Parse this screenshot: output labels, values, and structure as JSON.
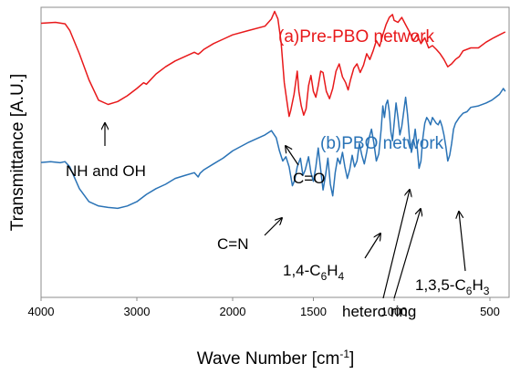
{
  "chart_data": {
    "type": "line",
    "xlabel_main": "Wave Number [cm",
    "xlabel_sup": "-1",
    "xlabel_tail": "]",
    "ylabel": "Transmittance [A.U.]",
    "x_reversed": true,
    "xlim": [
      4000,
      400
    ],
    "ylim": [
      0,
      100
    ],
    "x_ticks": [
      "4000",
      "3000",
      "2000",
      "1500",
      "1000",
      "500"
    ],
    "x_tick_values": [
      4000,
      3000,
      2000,
      1500,
      1000,
      500
    ],
    "grid": false,
    "series": [
      {
        "name": "(a)Pre-PBO network",
        "color": "#e8191b",
        "points": [
          [
            4000,
            94.5
          ],
          [
            3850,
            94.8
          ],
          [
            3750,
            94.3
          ],
          [
            3700,
            92
          ],
          [
            3600,
            84
          ],
          [
            3500,
            75
          ],
          [
            3400,
            68
          ],
          [
            3300,
            66.5
          ],
          [
            3200,
            67.5
          ],
          [
            3100,
            69.5
          ],
          [
            3000,
            72
          ],
          [
            2930,
            74
          ],
          [
            2900,
            73.5
          ],
          [
            2800,
            77
          ],
          [
            2700,
            79.5
          ],
          [
            2600,
            81.5
          ],
          [
            2500,
            83
          ],
          [
            2400,
            84.5
          ],
          [
            2360,
            83.8
          ],
          [
            2340,
            84.3
          ],
          [
            2300,
            85.5
          ],
          [
            2200,
            87.5
          ],
          [
            2100,
            89
          ],
          [
            2000,
            90.5
          ],
          [
            1900,
            92
          ],
          [
            1800,
            93.5
          ],
          [
            1760,
            96
          ],
          [
            1740,
            98.6
          ],
          [
            1720,
            96
          ],
          [
            1700,
            88
          ],
          [
            1680,
            74
          ],
          [
            1660,
            66
          ],
          [
            1650,
            62.4
          ],
          [
            1640,
            64.5
          ],
          [
            1620,
            70
          ],
          [
            1600,
            78
          ],
          [
            1590,
            71
          ],
          [
            1575,
            66
          ],
          [
            1560,
            62.8
          ],
          [
            1545,
            65
          ],
          [
            1530,
            73
          ],
          [
            1515,
            76.5
          ],
          [
            1500,
            71
          ],
          [
            1485,
            69
          ],
          [
            1470,
            73
          ],
          [
            1455,
            78
          ],
          [
            1440,
            77.5
          ],
          [
            1420,
            71
          ],
          [
            1400,
            68.5
          ],
          [
            1380,
            72
          ],
          [
            1360,
            78
          ],
          [
            1340,
            80.5
          ],
          [
            1320,
            76
          ],
          [
            1300,
            74
          ],
          [
            1285,
            71.5
          ],
          [
            1270,
            75
          ],
          [
            1250,
            79
          ],
          [
            1230,
            80.5
          ],
          [
            1210,
            77.5
          ],
          [
            1190,
            80
          ],
          [
            1170,
            84
          ],
          [
            1150,
            82
          ],
          [
            1130,
            85
          ],
          [
            1110,
            88.5
          ],
          [
            1090,
            86.5
          ],
          [
            1070,
            90.5
          ],
          [
            1050,
            94
          ],
          [
            1030,
            96.5
          ],
          [
            1010,
            97.5
          ],
          [
            1000,
            95.5
          ],
          [
            980,
            94.8
          ],
          [
            960,
            96.5
          ],
          [
            940,
            94
          ],
          [
            920,
            91.5
          ],
          [
            900,
            88.5
          ],
          [
            880,
            90.5
          ],
          [
            860,
            87.5
          ],
          [
            840,
            89.5
          ],
          [
            820,
            86
          ],
          [
            800,
            86.8
          ],
          [
            780,
            85.5
          ],
          [
            760,
            84
          ],
          [
            740,
            82
          ],
          [
            720,
            79.5
          ],
          [
            700,
            80.5
          ],
          [
            680,
            82
          ],
          [
            660,
            83
          ],
          [
            640,
            85
          ],
          [
            600,
            86
          ],
          [
            560,
            86
          ],
          [
            520,
            88
          ],
          [
            480,
            89.5
          ],
          [
            450,
            90.5
          ],
          [
            420,
            91.5
          ]
        ]
      },
      {
        "name": "(b)PBO network",
        "color": "#2a73b6",
        "points": [
          [
            4000,
            46.5
          ],
          [
            3900,
            46.8
          ],
          [
            3800,
            46.4
          ],
          [
            3750,
            46.8
          ],
          [
            3700,
            45
          ],
          [
            3600,
            37.5
          ],
          [
            3500,
            33
          ],
          [
            3400,
            31.5
          ],
          [
            3300,
            31
          ],
          [
            3200,
            30.7
          ],
          [
            3100,
            31.5
          ],
          [
            3000,
            33
          ],
          [
            2900,
            35.5
          ],
          [
            2800,
            37.5
          ],
          [
            2700,
            39
          ],
          [
            2600,
            41
          ],
          [
            2500,
            42
          ],
          [
            2400,
            43
          ],
          [
            2360,
            41.5
          ],
          [
            2340,
            42.8
          ],
          [
            2300,
            44
          ],
          [
            2200,
            46
          ],
          [
            2100,
            48
          ],
          [
            2000,
            50.5
          ],
          [
            1900,
            53.5
          ],
          [
            1800,
            56
          ],
          [
            1760,
            57.5
          ],
          [
            1730,
            55
          ],
          [
            1710,
            50.5
          ],
          [
            1690,
            47
          ],
          [
            1670,
            48.5
          ],
          [
            1650,
            45
          ],
          [
            1630,
            38.5
          ],
          [
            1615,
            40.5
          ],
          [
            1600,
            45
          ],
          [
            1580,
            48
          ],
          [
            1565,
            42
          ],
          [
            1550,
            44
          ],
          [
            1530,
            48.5
          ],
          [
            1515,
            43
          ],
          [
            1500,
            40
          ],
          [
            1485,
            45
          ],
          [
            1470,
            51.5
          ],
          [
            1455,
            44
          ],
          [
            1440,
            37
          ],
          [
            1425,
            42
          ],
          [
            1410,
            48
          ],
          [
            1395,
            39
          ],
          [
            1380,
            35
          ],
          [
            1365,
            43
          ],
          [
            1350,
            48
          ],
          [
            1335,
            46
          ],
          [
            1320,
            50
          ],
          [
            1305,
            45
          ],
          [
            1290,
            41
          ],
          [
            1275,
            44
          ],
          [
            1260,
            49
          ],
          [
            1245,
            45
          ],
          [
            1230,
            47
          ],
          [
            1215,
            53
          ],
          [
            1200,
            49
          ],
          [
            1185,
            46
          ],
          [
            1170,
            50
          ],
          [
            1155,
            55
          ],
          [
            1140,
            58
          ],
          [
            1125,
            53
          ],
          [
            1110,
            47
          ],
          [
            1095,
            49.5
          ],
          [
            1080,
            58
          ],
          [
            1070,
            66
          ],
          [
            1060,
            62
          ],
          [
            1050,
            66.5
          ],
          [
            1040,
            68
          ],
          [
            1030,
            64
          ],
          [
            1020,
            57
          ],
          [
            1010,
            54
          ],
          [
            1000,
            60
          ],
          [
            990,
            67
          ],
          [
            980,
            62
          ],
          [
            970,
            56
          ],
          [
            960,
            59
          ],
          [
            950,
            64
          ],
          [
            940,
            69
          ],
          [
            930,
            63
          ],
          [
            920,
            55
          ],
          [
            910,
            50
          ],
          [
            900,
            53
          ],
          [
            890,
            58
          ],
          [
            880,
            52
          ],
          [
            870,
            44.5
          ],
          [
            860,
            47
          ],
          [
            850,
            55
          ],
          [
            840,
            60
          ],
          [
            830,
            62
          ],
          [
            820,
            61
          ],
          [
            810,
            59.5
          ],
          [
            800,
            62
          ],
          [
            790,
            61
          ],
          [
            780,
            60
          ],
          [
            770,
            59.5
          ],
          [
            760,
            61
          ],
          [
            750,
            59
          ],
          [
            740,
            56
          ],
          [
            730,
            52
          ],
          [
            720,
            47
          ],
          [
            710,
            49
          ],
          [
            700,
            53
          ],
          [
            690,
            58
          ],
          [
            680,
            60
          ],
          [
            660,
            62
          ],
          [
            640,
            63.5
          ],
          [
            620,
            64
          ],
          [
            600,
            65.5
          ],
          [
            560,
            66
          ],
          [
            520,
            67
          ],
          [
            490,
            68
          ],
          [
            470,
            69
          ],
          [
            450,
            70
          ],
          [
            430,
            72
          ],
          [
            420,
            71
          ]
        ]
      }
    ],
    "annotations": [
      {
        "text": "NH and OH"
      },
      {
        "text": "C=O"
      },
      {
        "text": "C=N"
      },
      {
        "parts": [
          "1,4-C",
          "6",
          "H",
          "4"
        ]
      },
      {
        "text": "hetero ring"
      },
      {
        "parts": [
          "1,3,5-C",
          "6",
          "H",
          "3"
        ]
      }
    ]
  }
}
